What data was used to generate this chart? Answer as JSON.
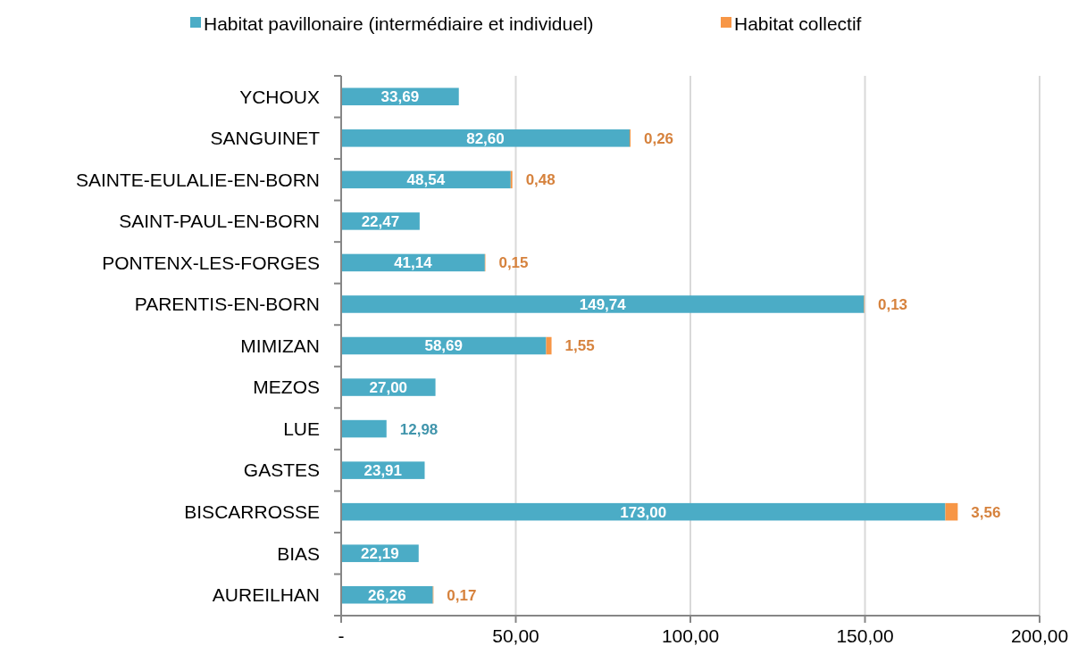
{
  "chart_data": {
    "type": "bar",
    "orientation": "horizontal",
    "stacked": true,
    "categories": [
      "YCHOUX",
      "SANGUINET",
      "SAINTE-EULALIE-EN-BORN",
      "SAINT-PAUL-EN-BORN",
      "PONTENX-LES-FORGES",
      "PARENTIS-EN-BORN",
      "MIMIZAN",
      "MEZOS",
      "LUE",
      "GASTES",
      "BISCARROSSE",
      "BIAS",
      "AUREILHAN"
    ],
    "series": [
      {
        "name": "Habitat pavillonaire (intermédiaire et individuel)",
        "color": "#4bacc6",
        "values": [
          33.69,
          82.6,
          48.54,
          22.47,
          41.14,
          149.74,
          58.69,
          27.0,
          12.98,
          23.91,
          173.0,
          22.19,
          26.26
        ],
        "value_labels": [
          "33,69",
          "82,60",
          "48,54",
          "22,47",
          "41,14",
          "149,74",
          "58,69",
          "27,00",
          "12,98",
          "23,91",
          "173,00",
          "22,19",
          "26,26"
        ]
      },
      {
        "name": "Habitat collectif",
        "color": "#f79646",
        "values": [
          null,
          0.26,
          0.48,
          null,
          0.15,
          0.13,
          1.55,
          null,
          null,
          null,
          3.56,
          null,
          0.17
        ],
        "value_labels": [
          null,
          "0,26",
          "0,48",
          null,
          "0,15",
          "0,13",
          "1,55",
          null,
          null,
          null,
          "3,56",
          null,
          "0,17"
        ]
      }
    ],
    "xlim": [
      0,
      200
    ],
    "xticks": [
      {
        "value": 0,
        "label": "-"
      },
      {
        "value": 50,
        "label": "50,00"
      },
      {
        "value": 100,
        "label": "100,00"
      },
      {
        "value": 150,
        "label": "150,00"
      },
      {
        "value": 200,
        "label": "200,00"
      }
    ],
    "grid": "x",
    "legend": "top"
  }
}
